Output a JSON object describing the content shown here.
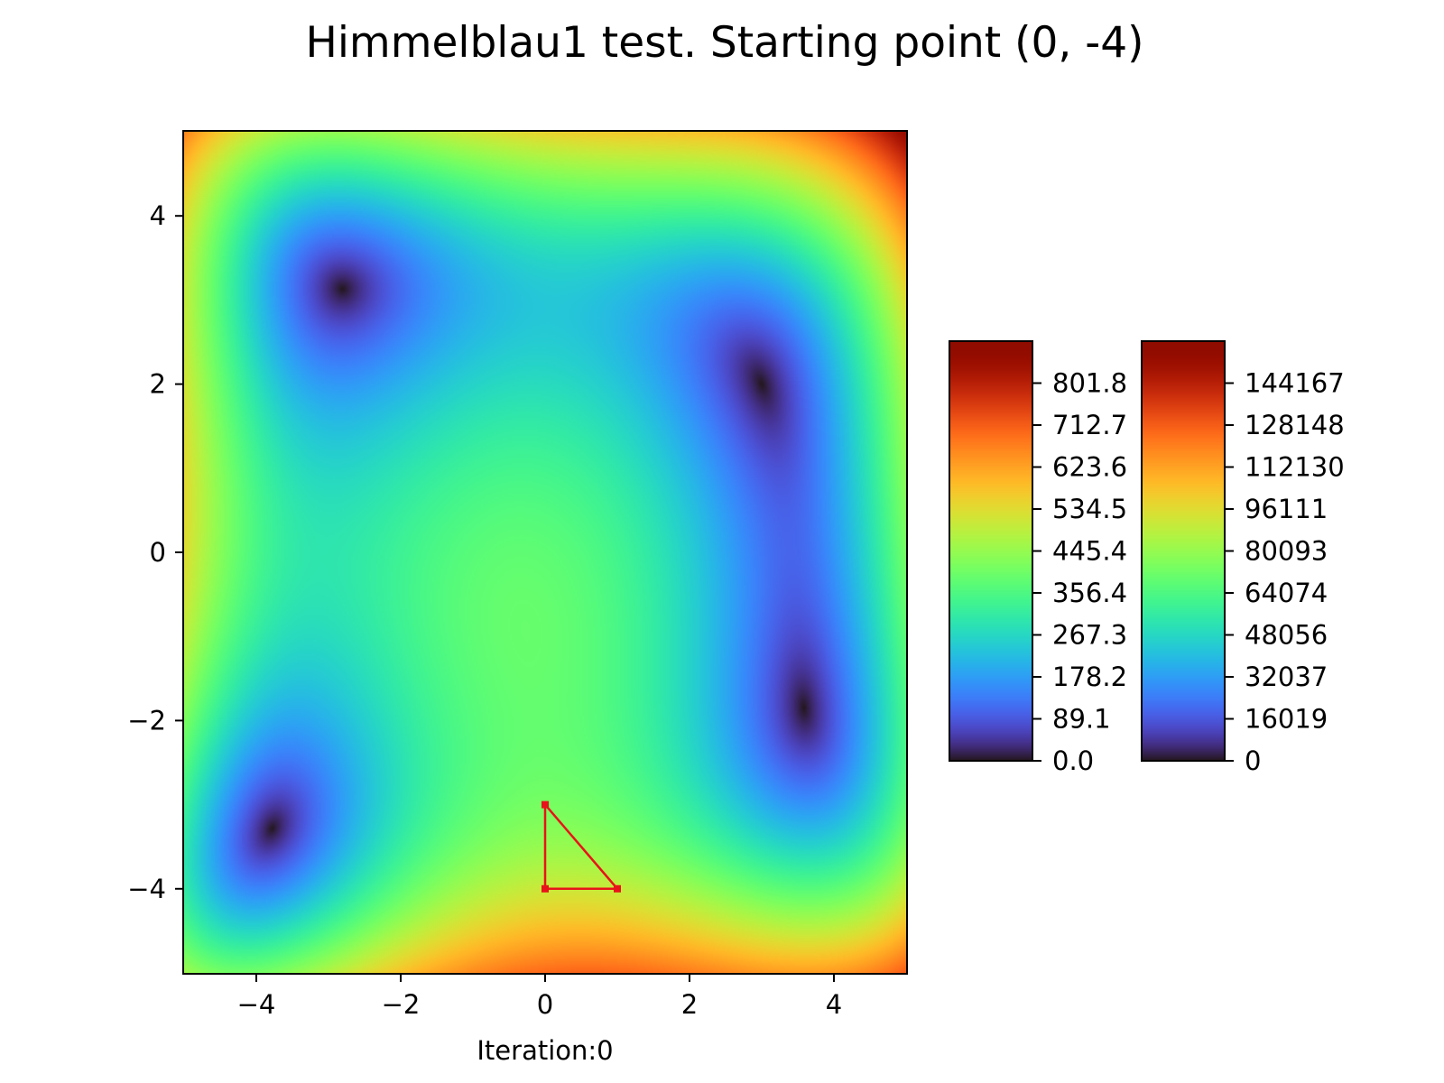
{
  "title": "Himmelblau1 test. Starting point (0, -4)",
  "chart_data": {
    "type": "heatmap",
    "function": "Himmelblau",
    "title": "Himmelblau1 test. Starting point (0, -4)",
    "xlabel": "Iteration:0",
    "ylabel": "",
    "xlim": [
      -5,
      5
    ],
    "ylim": [
      -5,
      5
    ],
    "xticks": [
      -4,
      -2,
      0,
      2,
      4
    ],
    "xtick_labels": [
      "−4",
      "−2",
      "0",
      "2",
      "4"
    ],
    "yticks": [
      4,
      2,
      0,
      -2,
      -4
    ],
    "ytick_labels": [
      "4",
      "2",
      "0",
      "−2",
      "−4"
    ],
    "colormap": "turbo",
    "simplex": {
      "color": "#e8131a",
      "vertices": [
        [
          0,
          -3
        ],
        [
          0,
          -4
        ],
        [
          1,
          -4
        ]
      ]
    },
    "colorbars": [
      {
        "min": 0.0,
        "max": 890.9,
        "ticks": [
          0.0,
          89.1,
          178.2,
          267.3,
          356.4,
          445.4,
          534.5,
          623.6,
          712.7,
          801.8
        ],
        "tick_labels": [
          "0.0",
          "89.1",
          "178.2",
          "267.3",
          "356.4",
          "445.4",
          "534.5",
          "623.6",
          "712.7",
          "801.8"
        ]
      },
      {
        "min": 0,
        "max": 160186,
        "ticks": [
          0,
          16019,
          32037,
          48056,
          64074,
          80093,
          96111,
          112130,
          128148,
          144167
        ],
        "tick_labels": [
          "0",
          "16019",
          "32037",
          "48056",
          "64074",
          "80093",
          "96111",
          "112130",
          "128148",
          "144167"
        ]
      }
    ]
  }
}
